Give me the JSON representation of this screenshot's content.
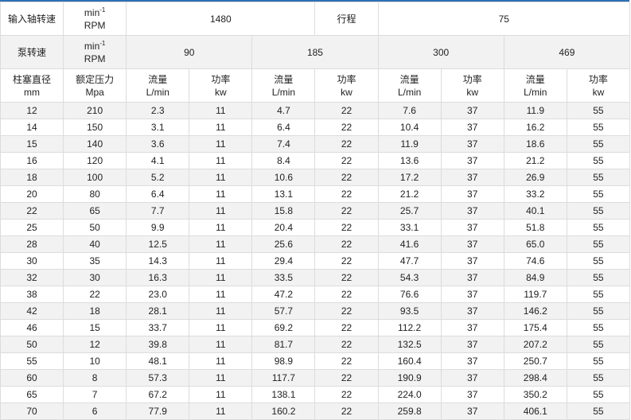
{
  "header": {
    "row1": {
      "label": "输入轴转速",
      "unit_main": "min",
      "unit_sup": "-1",
      "unit_rpm": "RPM",
      "input_speed": "1480",
      "stroke_label": "行程",
      "stroke": "75"
    },
    "row2": {
      "label": "泵转速",
      "unit_main": "min",
      "unit_sup": "-1",
      "unit_rpm": "RPM",
      "speeds": [
        "90",
        "185",
        "300",
        "469"
      ]
    },
    "row3": {
      "col1": [
        "柱塞直径",
        "mm"
      ],
      "col2": [
        "额定压力",
        "Mpa"
      ],
      "flow": [
        "流量",
        "L/min"
      ],
      "power": [
        "功率",
        "kw"
      ]
    }
  },
  "rows": [
    [
      "12",
      "210",
      "2.3",
      "11",
      "4.7",
      "22",
      "7.6",
      "37",
      "11.9",
      "55"
    ],
    [
      "14",
      "150",
      "3.1",
      "11",
      "6.4",
      "22",
      "10.4",
      "37",
      "16.2",
      "55"
    ],
    [
      "15",
      "140",
      "3.6",
      "11",
      "7.4",
      "22",
      "11.9",
      "37",
      "18.6",
      "55"
    ],
    [
      "16",
      "120",
      "4.1",
      "11",
      "8.4",
      "22",
      "13.6",
      "37",
      "21.2",
      "55"
    ],
    [
      "18",
      "100",
      "5.2",
      "11",
      "10.6",
      "22",
      "17.2",
      "37",
      "26.9",
      "55"
    ],
    [
      "20",
      "80",
      "6.4",
      "11",
      "13.1",
      "22",
      "21.2",
      "37",
      "33.2",
      "55"
    ],
    [
      "22",
      "65",
      "7.7",
      "11",
      "15.8",
      "22",
      "25.7",
      "37",
      "40.1",
      "55"
    ],
    [
      "25",
      "50",
      "9.9",
      "11",
      "20.4",
      "22",
      "33.1",
      "37",
      "51.8",
      "55"
    ],
    [
      "28",
      "40",
      "12.5",
      "11",
      "25.6",
      "22",
      "41.6",
      "37",
      "65.0",
      "55"
    ],
    [
      "30",
      "35",
      "14.3",
      "11",
      "29.4",
      "22",
      "47.7",
      "37",
      "74.6",
      "55"
    ],
    [
      "32",
      "30",
      "16.3",
      "11",
      "33.5",
      "22",
      "54.3",
      "37",
      "84.9",
      "55"
    ],
    [
      "38",
      "22",
      "23.0",
      "11",
      "47.2",
      "22",
      "76.6",
      "37",
      "119.7",
      "55"
    ],
    [
      "42",
      "18",
      "28.1",
      "11",
      "57.7",
      "22",
      "93.5",
      "37",
      "146.2",
      "55"
    ],
    [
      "46",
      "15",
      "33.7",
      "11",
      "69.2",
      "22",
      "112.2",
      "37",
      "175.4",
      "55"
    ],
    [
      "50",
      "12",
      "39.8",
      "11",
      "81.7",
      "22",
      "132.5",
      "37",
      "207.2",
      "55"
    ],
    [
      "55",
      "10",
      "48.1",
      "11",
      "98.9",
      "22",
      "160.4",
      "37",
      "250.7",
      "55"
    ],
    [
      "60",
      "8",
      "57.3",
      "11",
      "117.7",
      "22",
      "190.9",
      "37",
      "298.4",
      "55"
    ],
    [
      "65",
      "7",
      "67.2",
      "11",
      "138.1",
      "22",
      "224.0",
      "37",
      "350.2",
      "55"
    ],
    [
      "70",
      "6",
      "77.9",
      "11",
      "160.2",
      "22",
      "259.8",
      "37",
      "406.1",
      "55"
    ]
  ],
  "colors": {
    "accent": "#2e6fb3",
    "stripe": "#f2f2f2",
    "border": "#dcdcdc"
  }
}
